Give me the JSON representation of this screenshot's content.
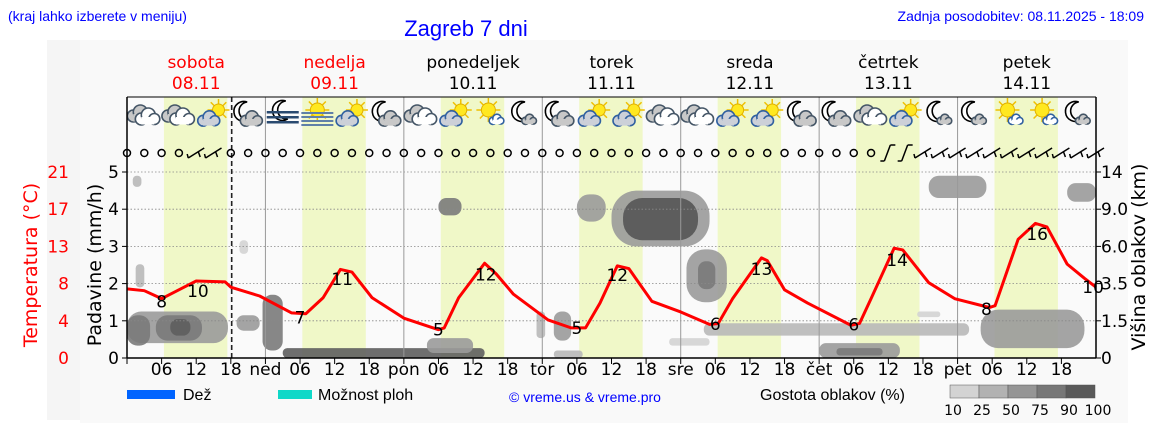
{
  "header": {
    "menu_hint": "(kraj lahko izberete v meniju)",
    "title": "Zagreb 7 dni",
    "last_update": "Zadnja posodobitev: 08.11.2025 - 18:09"
  },
  "colors": {
    "link_blue": "#0000ff",
    "temperature": "#ff0000",
    "daylight": "#f0f8c8",
    "rain": "#0064ff",
    "showers": "#10d8c8"
  },
  "legend": {
    "rain_label": "Dež",
    "showers_label": "Možnost ploh",
    "copyright": "© vreme.us & vreme.pro",
    "cloud_density_label": "Gostota oblakov (%)",
    "cloud_density_ticks": [
      "10",
      "25",
      "50",
      "75",
      "90",
      "100"
    ],
    "cloud_density_colors": [
      "#d3d3d3",
      "#b2b2b2",
      "#959595",
      "#777777",
      "#5a5a5a"
    ]
  },
  "chart_data": {
    "type": "line",
    "days": [
      {
        "name": "sobota",
        "date": "08.11",
        "weekend": true
      },
      {
        "name": "nedelja",
        "date": "09.11",
        "weekend": true
      },
      {
        "name": "ponedeljek",
        "date": "10.11",
        "weekend": false
      },
      {
        "name": "torek",
        "date": "11.11",
        "weekend": false
      },
      {
        "name": "sreda",
        "date": "12.11",
        "weekend": false
      },
      {
        "name": "četrtek",
        "date": "13.11",
        "weekend": false
      },
      {
        "name": "petek",
        "date": "14.11",
        "weekend": false
      }
    ],
    "x_tick_labels": [
      "06",
      "12",
      "18"
    ],
    "day_abbrev": [
      "",
      "ned",
      "pon",
      "tor",
      "sre",
      "čet",
      "pet"
    ],
    "now_hour": 18.15,
    "daylight_hours": [
      6.4,
      17.4
    ],
    "left_axis": {
      "label": "Padavine (mm/h)",
      "ticks": [
        "0",
        "1",
        "2",
        "3",
        "4",
        "5"
      ],
      "ylim": [
        0,
        5
      ]
    },
    "temp_axis": {
      "label": "Temperatura (°C)",
      "ticks": [
        "0",
        "4",
        "8",
        "13",
        "17",
        "21"
      ],
      "ylim": [
        0,
        21
      ]
    },
    "right_axis": {
      "label": "Višina oblakov (km)",
      "ticks": [
        "0",
        "1.5",
        "3.5",
        "6.0",
        "9.0",
        "14"
      ]
    },
    "grid": true,
    "temperature": [
      [
        0,
        7.8
      ],
      [
        3,
        7.6
      ],
      [
        6,
        6.7
      ],
      [
        12,
        8.7
      ],
      [
        17,
        8.6
      ],
      [
        18,
        8.0
      ],
      [
        23,
        7.0
      ],
      [
        28.5,
        5.1
      ],
      [
        31,
        5.0
      ],
      [
        34,
        6.8
      ],
      [
        37,
        10.0
      ],
      [
        39,
        9.7
      ],
      [
        42.5,
        6.8
      ],
      [
        48,
        4.5
      ],
      [
        54,
        3.2
      ],
      [
        55,
        3.4
      ],
      [
        57.5,
        6.8
      ],
      [
        62,
        10.7
      ],
      [
        64,
        9.5
      ],
      [
        67,
        7.2
      ],
      [
        73,
        4.3
      ],
      [
        77,
        3.4
      ],
      [
        79.5,
        3.4
      ],
      [
        82,
        6.2
      ],
      [
        85,
        10.4
      ],
      [
        87,
        10.1
      ],
      [
        91,
        6.4
      ],
      [
        96,
        5.2
      ],
      [
        101,
        3.8
      ],
      [
        102.5,
        3.9
      ],
      [
        105,
        6.7
      ],
      [
        110,
        11.3
      ],
      [
        111,
        11.0
      ],
      [
        114,
        7.7
      ],
      [
        118,
        6.2
      ],
      [
        125.5,
        3.7
      ],
      [
        127,
        3.9
      ],
      [
        129,
        6.7
      ],
      [
        133,
        12.4
      ],
      [
        134.5,
        12.2
      ],
      [
        139,
        8.5
      ],
      [
        143.5,
        6.7
      ],
      [
        149.5,
        5.7
      ],
      [
        150.5,
        5.9
      ],
      [
        154.5,
        13.4
      ],
      [
        157.5,
        15.2
      ],
      [
        159.5,
        14.8
      ],
      [
        163,
        10.6
      ],
      [
        166,
        9.0
      ],
      [
        168,
        8.0
      ]
    ],
    "temperature_labels": [
      {
        "hour": 6,
        "text": "8",
        "dy": 3
      },
      {
        "hour": 12.3,
        "text": "10",
        "dy": 10
      },
      {
        "hour": 30,
        "text": "7",
        "dy": 4
      },
      {
        "hour": 37.3,
        "text": "11",
        "dy": 9
      },
      {
        "hour": 54,
        "text": "5",
        "dy": 0
      },
      {
        "hour": 62.2,
        "text": "12",
        "dy": 10
      },
      {
        "hour": 78,
        "text": "5",
        "dy": 0
      },
      {
        "hour": 85,
        "text": "12",
        "dy": 9
      },
      {
        "hour": 102,
        "text": "6",
        "dy": 0
      },
      {
        "hour": 110,
        "text": "13",
        "dy": 11
      },
      {
        "hour": 126,
        "text": "6",
        "dy": 0
      },
      {
        "hour": 133.5,
        "text": "14",
        "dy": 11
      },
      {
        "hour": 149,
        "text": "8",
        "dy": 2
      },
      {
        "hour": 157.8,
        "text": "16",
        "dy": 10
      },
      {
        "hour": 167.5,
        "text": "10",
        "dy": 2
      }
    ],
    "clouds": [
      {
        "h": [
          0,
          17.5
        ],
        "km": [
          0.6,
          2.0
        ],
        "density": 50
      },
      {
        "h": [
          5,
          13
        ],
        "km": [
          0.7,
          1.8
        ],
        "density": 75
      },
      {
        "h": [
          7.5,
          11
        ],
        "km": [
          0.9,
          1.6
        ],
        "density": 90
      },
      {
        "h": [
          0,
          4
        ],
        "km": [
          0.5,
          1.8
        ],
        "density": 75
      },
      {
        "h": [
          19,
          23
        ],
        "km": [
          1.1,
          1.8
        ],
        "density": 50
      },
      {
        "h": [
          23.5,
          27
        ],
        "km": [
          0.3,
          2.9
        ],
        "density": 75
      },
      {
        "h": [
          1.5,
          3
        ],
        "km": [
          3.3,
          4.8
        ],
        "density": 25
      },
      {
        "h": [
          1,
          2.5
        ],
        "km": [
          12,
          13.5
        ],
        "density": 25
      },
      {
        "h": [
          19.5,
          21
        ],
        "km": [
          5.5,
          6.5
        ],
        "density": 10
      },
      {
        "h": [
          27,
          62
        ],
        "km": [
          0,
          0.4
        ],
        "density": 90
      },
      {
        "h": [
          52,
          60
        ],
        "km": [
          0.2,
          0.8
        ],
        "density": 50
      },
      {
        "h": [
          54,
          58
        ],
        "km": [
          8.5,
          10.5
        ],
        "density": 75
      },
      {
        "h": [
          71,
          72.5
        ],
        "km": [
          0.8,
          2.0
        ],
        "density": 25
      },
      {
        "h": [
          74,
          77
        ],
        "km": [
          0.7,
          2.0
        ],
        "density": 50
      },
      {
        "h": [
          74,
          79
        ],
        "km": [
          0,
          0.3
        ],
        "density": 25
      },
      {
        "h": [
          78,
          83
        ],
        "km": [
          8,
          11
        ],
        "density": 50
      },
      {
        "h": [
          84,
          101
        ],
        "km": [
          6,
          11.5
        ],
        "density": 50
      },
      {
        "h": [
          86,
          99
        ],
        "km": [
          6.5,
          10.5
        ],
        "density": 100
      },
      {
        "h": [
          97,
          104
        ],
        "km": [
          2.5,
          5.8
        ],
        "density": 50
      },
      {
        "h": [
          99,
          102
        ],
        "km": [
          3.2,
          5
        ],
        "density": 75
      },
      {
        "h": [
          100,
          146
        ],
        "km": [
          0.9,
          1.4
        ],
        "density": 25
      },
      {
        "h": [
          94,
          101
        ],
        "km": [
          0.5,
          0.8
        ],
        "density": 10
      },
      {
        "h": [
          120,
          134
        ],
        "km": [
          0,
          0.6
        ],
        "density": 50
      },
      {
        "h": [
          123,
          131
        ],
        "km": [
          0.1,
          0.4
        ],
        "density": 75
      },
      {
        "h": [
          139,
          149
        ],
        "km": [
          10.5,
          13.5
        ],
        "density": 50
      },
      {
        "h": [
          148,
          166
        ],
        "km": [
          0.4,
          2.1
        ],
        "density": 50
      },
      {
        "h": [
          163,
          168
        ],
        "km": [
          10,
          12.5
        ],
        "density": 50
      },
      {
        "h": [
          137,
          141
        ],
        "km": [
          1.7,
          2.0
        ],
        "density": 10
      }
    ],
    "wind": [
      "calm",
      "calm",
      "calm",
      "calm",
      "barb",
      "barb",
      "calm",
      "calm",
      "calm",
      "calm",
      "calm",
      "calm",
      "calm",
      "calm",
      "calm",
      "calm",
      "calm",
      "calm",
      "calm",
      "calm",
      "calm",
      "calm",
      "calm",
      "calm",
      "calm",
      "calm",
      "calm",
      "calm",
      "calm",
      "calm",
      "calm",
      "calm",
      "calm",
      "calm",
      "calm",
      "calm",
      "calm",
      "calm",
      "calm",
      "calm",
      "calm",
      "calm",
      "calm",
      "calm",
      "barb-v",
      "barb-v",
      "barb",
      "barb",
      "barb",
      "barb",
      "barb",
      "barb",
      "barb",
      "barb",
      "barb",
      "barb",
      "barb"
    ],
    "weather_icons": [
      "overcast",
      "overcast",
      "partly-cloudy-day",
      "partly-cloudy-night",
      "fog-night",
      "fog-day",
      "partly-cloudy-day",
      "partly-cloudy-night",
      "overcast",
      "partly-cloudy-day",
      "sunny-small-cloud",
      "night-small-cloud",
      "partly-cloudy-night",
      "partly-cloudy-day",
      "partly-cloudy-day",
      "overcast",
      "overcast",
      "partly-cloudy-day",
      "partly-cloudy-day",
      "partly-cloudy-night",
      "partly-cloudy-night",
      "overcast",
      "partly-cloudy-day",
      "night-small-cloud",
      "night-small-cloud",
      "sunny-small-cloud",
      "sunny-small-cloud",
      "night-small-cloud"
    ]
  }
}
